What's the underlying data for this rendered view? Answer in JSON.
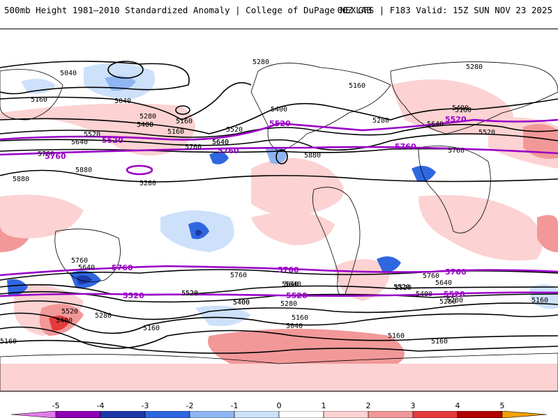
{
  "header": {
    "left_title": "500mb Height 1981–2010 Standardized Anomaly | College of DuPage NEXLAB",
    "right_title": "00Z GFS | F183 Valid: 15Z SUN NOV 23 2025"
  },
  "contour_labels": {
    "black": [
      "5040",
      "5040",
      "5160",
      "5280",
      "5160",
      "5160",
      "5280",
      "5400",
      "5520",
      "5640",
      "5760",
      "5880",
      "5880",
      "5160",
      "5280",
      "5400",
      "5520",
      "5640",
      "5760",
      "5880",
      "5400",
      "5280",
      "5640",
      "5280",
      "5160",
      "5400",
      "5520",
      "5640",
      "5760",
      "5760",
      "5640",
      "5520",
      "5400",
      "5280",
      "5160",
      "5040",
      "5160",
      "5160",
      "5280",
      "5400",
      "5520",
      "5640",
      "5520",
      "5280",
      "5160",
      "5160",
      "5400",
      "5520",
      "5640",
      "5760",
      "5760",
      "5640",
      "5520",
      "5400",
      "5280",
      "5160"
    ],
    "purple": [
      "5520",
      "5760",
      "5520",
      "5760",
      "5520",
      "5760",
      "5520",
      "5760",
      "5520",
      "5760",
      "5520",
      "5760",
      "5520",
      "5760"
    ]
  },
  "colorbar": {
    "ticks": [
      "-5",
      "-4",
      "-3",
      "-2",
      "-1",
      "0",
      "1",
      "2",
      "3",
      "4",
      "5"
    ],
    "colors": [
      "#e27be8",
      "#8f00b5",
      "#1d39a8",
      "#2f67e0",
      "#8fb6f2",
      "#cde1fb",
      "#ffffff",
      "#fcd2d2",
      "#f29898",
      "#e53b3b",
      "#b30000",
      "#f3a000"
    ]
  }
}
